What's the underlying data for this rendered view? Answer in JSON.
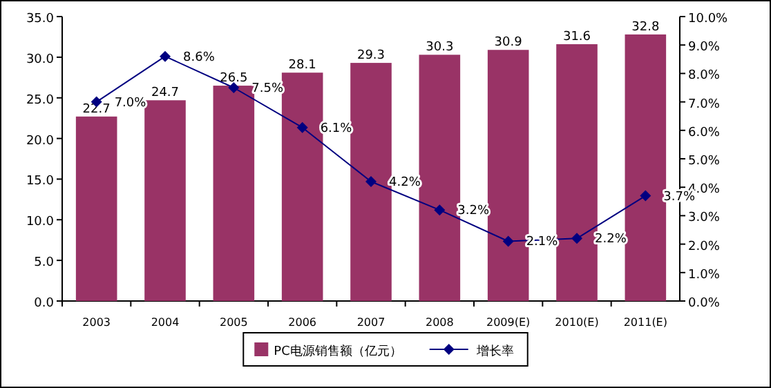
{
  "chart_data": {
    "type": "bar",
    "categories": [
      "2003",
      "2004",
      "2005",
      "2006",
      "2007",
      "2008",
      "2009(E)",
      "2010(E)",
      "2011(E)"
    ],
    "series": [
      {
        "name": "PC电源销售额（亿元）",
        "color": "#993366",
        "values": [
          22.7,
          24.7,
          26.5,
          28.1,
          29.3,
          30.3,
          30.9,
          31.6,
          32.8
        ],
        "value_labels": [
          "22.7",
          "24.7",
          "26.5",
          "28.1",
          "29.3",
          "30.3",
          "30.9",
          "31.6",
          "32.8"
        ]
      },
      {
        "name": "增长率",
        "type": "line",
        "axis": "y2",
        "color": "#000080",
        "marker": "diamond",
        "values": [
          7.0,
          8.6,
          7.5,
          6.1,
          4.2,
          3.2,
          2.1,
          2.2,
          3.7
        ],
        "value_labels": [
          "7.0%",
          "8.6%",
          "7.5%",
          "6.1%",
          "4.2%",
          "3.2%",
          "2.1%",
          "2.2%",
          "3.7%"
        ]
      }
    ],
    "ylim": [
      0,
      35
    ],
    "yticks": [
      {
        "value": 0,
        "label": "0.0"
      },
      {
        "value": 5,
        "label": "5.0"
      },
      {
        "value": 10,
        "label": "10.0"
      },
      {
        "value": 15,
        "label": "15.0"
      },
      {
        "value": 20,
        "label": "20.0"
      },
      {
        "value": 25,
        "label": "25.0"
      },
      {
        "value": 30,
        "label": "30.0"
      },
      {
        "value": 35,
        "label": "35.0"
      }
    ],
    "y2lim": [
      0,
      10
    ],
    "y2ticks": [
      {
        "value": 0,
        "label": "0.0%"
      },
      {
        "value": 1,
        "label": "1.0%"
      },
      {
        "value": 2,
        "label": "2.0%"
      },
      {
        "value": 3,
        "label": "3.0%"
      },
      {
        "value": 4,
        "label": "4.0%"
      },
      {
        "value": 5,
        "label": "5.0%"
      },
      {
        "value": 6,
        "label": "6.0%"
      },
      {
        "value": 7,
        "label": "7.0%"
      },
      {
        "value": 8,
        "label": "8.0%"
      },
      {
        "value": 9,
        "label": "9.0%"
      },
      {
        "value": 10,
        "label": "10.0%"
      }
    ],
    "grid": false,
    "legend": "bottom"
  }
}
